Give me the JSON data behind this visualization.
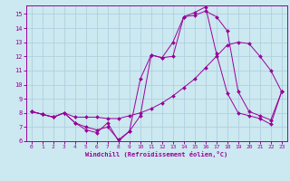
{
  "bg_color": "#cce8f0",
  "grid_color": "#aaccdd",
  "line_color": "#990099",
  "marker_color": "#990099",
  "xlabel": "Windchill (Refroidissement éolien,°C)",
  "xlim": [
    -0.5,
    23.5
  ],
  "ylim": [
    6,
    15.6
  ],
  "yticks": [
    6,
    7,
    8,
    9,
    10,
    11,
    12,
    13,
    14,
    15
  ],
  "xticks": [
    0,
    1,
    2,
    3,
    4,
    5,
    6,
    7,
    8,
    9,
    10,
    11,
    12,
    13,
    14,
    15,
    16,
    17,
    18,
    19,
    20,
    21,
    22,
    23
  ],
  "line1_x": [
    0,
    1,
    2,
    3,
    4,
    5,
    6,
    7,
    8,
    9,
    10,
    11,
    12,
    13,
    14,
    15,
    16,
    17,
    18,
    19,
    20,
    21,
    22,
    23
  ],
  "line1_y": [
    8.1,
    7.9,
    7.7,
    8.0,
    7.7,
    7.7,
    7.7,
    7.6,
    7.6,
    7.8,
    8.0,
    8.3,
    8.7,
    9.2,
    9.8,
    10.4,
    11.2,
    12.0,
    12.8,
    13.0,
    12.9,
    12.0,
    11.0,
    9.5
  ],
  "line2_x": [
    0,
    1,
    2,
    3,
    4,
    5,
    6,
    7,
    8,
    9,
    10,
    11,
    12,
    13,
    14,
    15,
    16,
    17,
    18,
    19,
    20,
    21,
    22,
    23
  ],
  "line2_y": [
    8.1,
    7.9,
    7.7,
    8.0,
    7.3,
    7.0,
    6.8,
    7.0,
    6.1,
    6.7,
    10.4,
    12.1,
    11.9,
    13.0,
    14.8,
    14.9,
    15.2,
    14.8,
    13.8,
    9.5,
    8.1,
    7.8,
    7.5,
    9.5
  ],
  "line3_x": [
    0,
    1,
    2,
    3,
    4,
    5,
    6,
    7,
    8,
    9,
    10,
    11,
    12,
    13,
    14,
    15,
    16,
    17,
    18,
    19,
    20,
    21,
    22,
    23
  ],
  "line3_y": [
    8.1,
    7.9,
    7.7,
    8.0,
    7.3,
    6.8,
    6.6,
    7.3,
    6.0,
    6.7,
    7.8,
    12.1,
    11.9,
    12.0,
    14.8,
    15.1,
    15.5,
    12.2,
    9.4,
    8.0,
    7.8,
    7.6,
    7.2,
    9.5
  ]
}
